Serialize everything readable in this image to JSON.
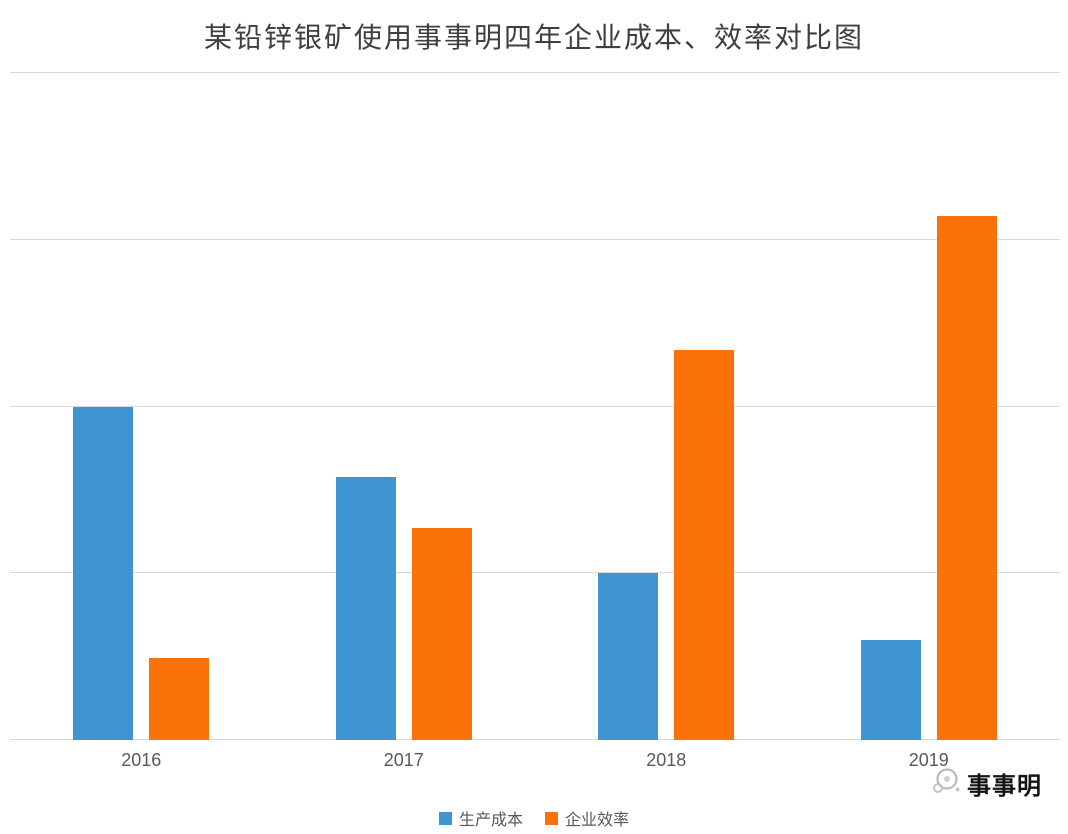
{
  "chart_data": {
    "type": "bar",
    "title": "某铅锌银矿使用事事明四年企业成本、效率对比图",
    "categories": [
      "2016",
      "2017",
      "2018",
      "2019"
    ],
    "series": [
      {
        "name": "生产成本",
        "color": "#3e95d2",
        "values": [
          2.0,
          1.58,
          1.0,
          0.6
        ]
      },
      {
        "name": "企业效率",
        "color": "#fa7208",
        "values": [
          0.49,
          1.27,
          2.34,
          3.14
        ]
      }
    ],
    "xlabel": "",
    "ylabel": "",
    "ylim": [
      0,
      4
    ],
    "grid": "horizontal, light gray, no y tick labels",
    "legend_position": "bottom-center"
  },
  "watermark": {
    "brand": "事事明"
  }
}
